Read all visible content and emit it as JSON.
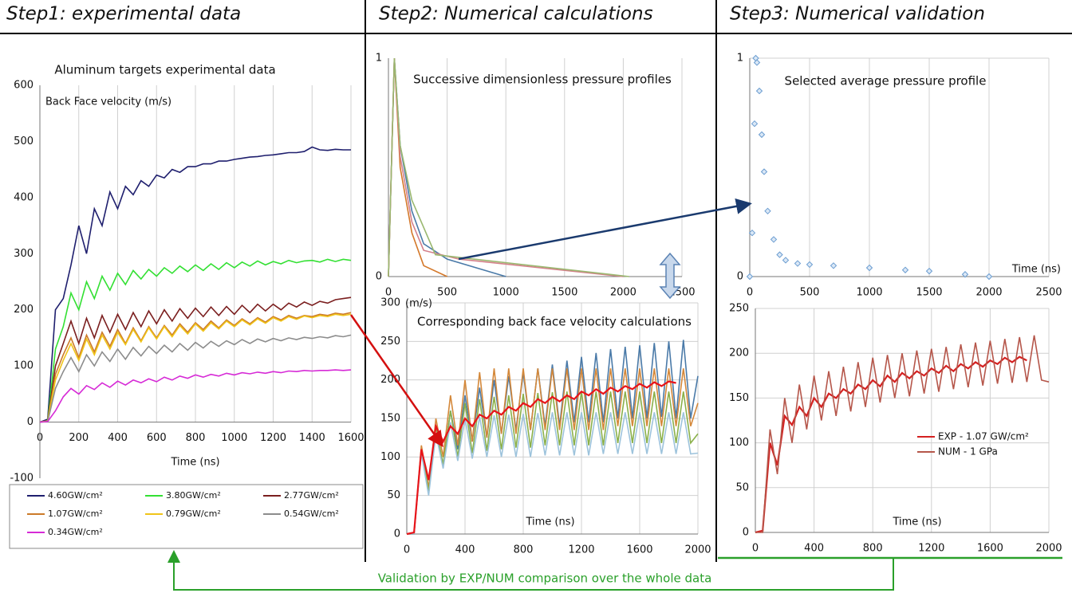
{
  "headers": [
    "Step1: experimental data",
    "Step2: Numerical calculations",
    "Step3: Numerical validation"
  ],
  "footer": "Validation by EXP/NUM comparison over the whole data",
  "chart_data": [
    {
      "type": "line",
      "title": "Aluminum targets experimental data",
      "y_label": "Back Face velocity (m/s)",
      "x_label": "Time (ns)",
      "x": [
        0,
        40,
        80,
        120,
        160,
        200,
        240,
        280,
        320,
        360,
        400,
        440,
        480,
        520,
        560,
        600,
        640,
        680,
        720,
        760,
        800,
        840,
        880,
        920,
        960,
        1000,
        1040,
        1080,
        1120,
        1160,
        1200,
        1240,
        1280,
        1320,
        1360,
        1400,
        1440,
        1480,
        1520,
        1560,
        1600
      ],
      "series": [
        {
          "name": "4.60GW/cm²",
          "color": "#1f1f6e",
          "values": [
            0,
            5,
            200,
            220,
            280,
            350,
            300,
            380,
            350,
            410,
            380,
            420,
            405,
            430,
            420,
            440,
            435,
            450,
            445,
            455,
            455,
            460,
            460,
            465,
            465,
            468,
            470,
            472,
            473,
            475,
            476,
            478,
            480,
            480,
            482,
            490,
            485,
            484,
            486,
            485,
            485
          ]
        },
        {
          "name": "3.80GW/cm²",
          "color": "#33e033",
          "values": [
            0,
            2,
            130,
            170,
            230,
            200,
            250,
            220,
            260,
            235,
            265,
            245,
            270,
            255,
            272,
            260,
            275,
            265,
            278,
            268,
            280,
            270,
            282,
            272,
            284,
            275,
            285,
            278,
            287,
            280,
            286,
            282,
            288,
            284,
            287,
            288,
            285,
            290,
            286,
            290,
            288
          ]
        },
        {
          "name": "2.77GW/cm²",
          "color": "#7b1f1f",
          "values": [
            0,
            2,
            100,
            140,
            180,
            140,
            185,
            150,
            190,
            160,
            192,
            165,
            195,
            170,
            198,
            175,
            200,
            180,
            202,
            185,
            203,
            188,
            205,
            190,
            206,
            192,
            208,
            195,
            210,
            198,
            210,
            200,
            212,
            205,
            214,
            208,
            215,
            212,
            218,
            220,
            222
          ]
        },
        {
          "name": "1.07GW/cm²",
          "color": "#cc7a29",
          "values": [
            0,
            2,
            85,
            120,
            150,
            115,
            155,
            125,
            160,
            135,
            165,
            140,
            168,
            145,
            170,
            150,
            172,
            155,
            175,
            160,
            177,
            165,
            180,
            168,
            182,
            172,
            184,
            175,
            186,
            178,
            188,
            182,
            190,
            185,
            190,
            188,
            192,
            190,
            194,
            192,
            195
          ]
        },
        {
          "name": "0.79GW/cm²",
          "color": "#f0c419",
          "values": [
            0,
            2,
            75,
            110,
            140,
            110,
            148,
            120,
            155,
            130,
            160,
            138,
            165,
            143,
            168,
            148,
            170,
            152,
            172,
            157,
            175,
            162,
            177,
            166,
            180,
            170,
            182,
            173,
            184,
            176,
            186,
            180,
            188,
            183,
            189,
            186,
            190,
            188,
            192,
            190,
            192
          ]
        },
        {
          "name": "0.54GW/cm²",
          "color": "#8c8c8c",
          "values": [
            0,
            1,
            60,
            90,
            115,
            90,
            120,
            100,
            125,
            108,
            130,
            112,
            133,
            118,
            135,
            122,
            137,
            125,
            140,
            128,
            142,
            132,
            144,
            135,
            145,
            138,
            147,
            140,
            148,
            143,
            149,
            145,
            150,
            147,
            151,
            149,
            152,
            150,
            154,
            152,
            155
          ]
        },
        {
          "name": "0.34GW/cm²",
          "color": "#d62ad6",
          "values": [
            0,
            1,
            20,
            45,
            60,
            50,
            65,
            58,
            70,
            62,
            73,
            66,
            75,
            70,
            77,
            72,
            80,
            75,
            82,
            78,
            84,
            80,
            85,
            82,
            87,
            84,
            88,
            86,
            89,
            87,
            90,
            88,
            91,
            90,
            92,
            91,
            92,
            92,
            93,
            92,
            93
          ]
        }
      ],
      "xlim": [
        0,
        1600
      ],
      "xticks": [
        0,
        200,
        400,
        600,
        800,
        1000,
        1200,
        1400,
        1600
      ],
      "ylim": [
        -100,
        600
      ],
      "yticks": [
        -100,
        0,
        100,
        200,
        300,
        400,
        500,
        600
      ],
      "grid": "x",
      "legend": "bottom"
    },
    {
      "type": "line",
      "title": "Successive dimensionless pressure profiles",
      "series": [
        {
          "color": "#4a7aa8",
          "x": [
            0,
            50,
            100,
            200,
            300,
            500,
            1000
          ],
          "values": [
            0,
            1,
            0.6,
            0.3,
            0.15,
            0.08,
            0
          ]
        },
        {
          "color": "#d4782a",
          "x": [
            0,
            50,
            100,
            200,
            300,
            500
          ],
          "values": [
            0,
            1,
            0.5,
            0.2,
            0.05,
            0
          ]
        },
        {
          "color": "#d4808a",
          "x": [
            0,
            50,
            100,
            200,
            300,
            600,
            2000
          ],
          "values": [
            0,
            1,
            0.55,
            0.25,
            0.12,
            0.08,
            0
          ]
        },
        {
          "color": "#9ab870",
          "x": [
            0,
            50,
            100,
            200,
            400,
            2050
          ],
          "values": [
            0,
            1,
            0.6,
            0.35,
            0.1,
            0
          ]
        }
      ],
      "xlim": [
        0,
        2500
      ],
      "xticks": [
        0,
        500,
        1000,
        1500,
        2000,
        2500
      ],
      "ylim": [
        0,
        1
      ],
      "yticks": [
        0,
        1
      ],
      "grid": "x"
    },
    {
      "type": "line",
      "title": "Corresponding back face velocity calculations",
      "y_label": "(m/s)",
      "x_label": "Time (ns)",
      "x": [
        0,
        50,
        100,
        150,
        200,
        250,
        300,
        350,
        400,
        450,
        500,
        550,
        600,
        650,
        700,
        750,
        800,
        850,
        900,
        950,
        1000,
        1050,
        1100,
        1150,
        1200,
        1250,
        1300,
        1350,
        1400,
        1450,
        1500,
        1550,
        1600,
        1650,
        1700,
        1750,
        1800,
        1850,
        1900,
        1950,
        2000
      ],
      "series": [
        {
          "color": "#4a7aa8",
          "values": [
            0,
            0,
            110,
            60,
            130,
            90,
            160,
            110,
            180,
            120,
            190,
            125,
            200,
            130,
            205,
            135,
            210,
            135,
            215,
            140,
            220,
            140,
            225,
            145,
            230,
            145,
            235,
            145,
            240,
            150,
            243,
            150,
            245,
            150,
            248,
            152,
            250,
            150,
            252,
            150,
            205
          ]
        },
        {
          "color": "#d4883a",
          "values": [
            0,
            0,
            115,
            60,
            150,
            100,
            180,
            115,
            200,
            120,
            210,
            125,
            215,
            130,
            215,
            130,
            215,
            135,
            215,
            135,
            215,
            135,
            215,
            135,
            215,
            135,
            215,
            135,
            215,
            140,
            215,
            140,
            215,
            140,
            215,
            140,
            215,
            140,
            215,
            140,
            170
          ]
        },
        {
          "color": "#8ab04a",
          "values": [
            0,
            0,
            110,
            55,
            140,
            90,
            160,
            100,
            170,
            105,
            175,
            108,
            178,
            110,
            180,
            112,
            182,
            112,
            183,
            115,
            184,
            115,
            185,
            115,
            185,
            115,
            185,
            115,
            185,
            118,
            185,
            118,
            185,
            118,
            185,
            118,
            185,
            118,
            185,
            118,
            130
          ]
        },
        {
          "color": "#9dc3dc",
          "values": [
            0,
            0,
            105,
            50,
            130,
            85,
            145,
            95,
            150,
            98,
            152,
            100,
            154,
            100,
            155,
            100,
            156,
            100,
            157,
            102,
            158,
            102,
            158,
            102,
            158,
            102,
            158,
            104,
            158,
            104,
            158,
            104,
            158,
            104,
            158,
            104,
            158,
            104,
            158,
            104,
            105
          ]
        },
        {
          "color": "#e8141a",
          "values": [
            0,
            2,
            110,
            70,
            140,
            120,
            140,
            130,
            150,
            140,
            155,
            150,
            160,
            155,
            165,
            160,
            170,
            165,
            175,
            170,
            178,
            172,
            180,
            175,
            185,
            180,
            188,
            182,
            190,
            185,
            192,
            188,
            195,
            190,
            197,
            192,
            198,
            196,
            null,
            null,
            null
          ]
        }
      ],
      "xlim": [
        0,
        2000
      ],
      "xticks": [
        0,
        400,
        800,
        1200,
        1600,
        2000
      ],
      "ylim": [
        0,
        300
      ],
      "yticks": [
        0,
        50,
        100,
        150,
        200,
        250,
        300
      ],
      "grid": "both"
    },
    {
      "type": "scatter",
      "title": "Selected average pressure profile",
      "x_label": "Time (ns)",
      "color": "#6a9cd0",
      "x": [
        0,
        20,
        40,
        50,
        60,
        80,
        100,
        120,
        150,
        200,
        250,
        300,
        400,
        500,
        700,
        1000,
        1300,
        1500,
        1800,
        2000
      ],
      "values": [
        0,
        0.2,
        0.7,
        1,
        0.98,
        0.85,
        0.65,
        0.48,
        0.3,
        0.17,
        0.1,
        0.075,
        0.06,
        0.055,
        0.05,
        0.04,
        0.03,
        0.025,
        0.01,
        0
      ],
      "xlim": [
        0,
        2500
      ],
      "xticks": [
        0,
        500,
        1000,
        1500,
        2000,
        2500
      ],
      "ylim": [
        0,
        1
      ],
      "yticks": [
        0,
        1
      ],
      "grid": "both"
    },
    {
      "type": "line",
      "x_label": "Time (ns)",
      "x": [
        0,
        50,
        100,
        150,
        200,
        250,
        300,
        350,
        400,
        450,
        500,
        550,
        600,
        650,
        700,
        750,
        800,
        850,
        900,
        950,
        1000,
        1050,
        1100,
        1150,
        1200,
        1250,
        1300,
        1350,
        1400,
        1450,
        1500,
        1550,
        1600,
        1650,
        1700,
        1750,
        1800,
        1850,
        1900,
        1950,
        2000
      ],
      "series": [
        {
          "name": "EXP - 1.07 GW/cm²",
          "color": "#d42020",
          "values": [
            0,
            2,
            100,
            75,
            130,
            120,
            140,
            130,
            150,
            140,
            155,
            150,
            160,
            155,
            165,
            160,
            170,
            163,
            175,
            168,
            178,
            172,
            180,
            175,
            183,
            178,
            186,
            180,
            188,
            183,
            190,
            185,
            192,
            188,
            195,
            190,
            196,
            192,
            null,
            null,
            null
          ]
        },
        {
          "name": "NUM - 1 GPa",
          "color": "#b5564a",
          "values": [
            0,
            0,
            115,
            65,
            150,
            100,
            165,
            115,
            175,
            125,
            180,
            130,
            185,
            135,
            190,
            140,
            195,
            145,
            198,
            150,
            200,
            152,
            203,
            155,
            205,
            157,
            207,
            160,
            210,
            162,
            212,
            164,
            214,
            166,
            216,
            167,
            218,
            168,
            220,
            170,
            168
          ]
        }
      ],
      "xlim": [
        0,
        2000
      ],
      "xticks": [
        0,
        400,
        800,
        1200,
        1600,
        2000
      ],
      "ylim": [
        0,
        250
      ],
      "yticks": [
        0,
        50,
        100,
        150,
        200,
        250
      ],
      "grid": "both",
      "legend": "right"
    }
  ]
}
